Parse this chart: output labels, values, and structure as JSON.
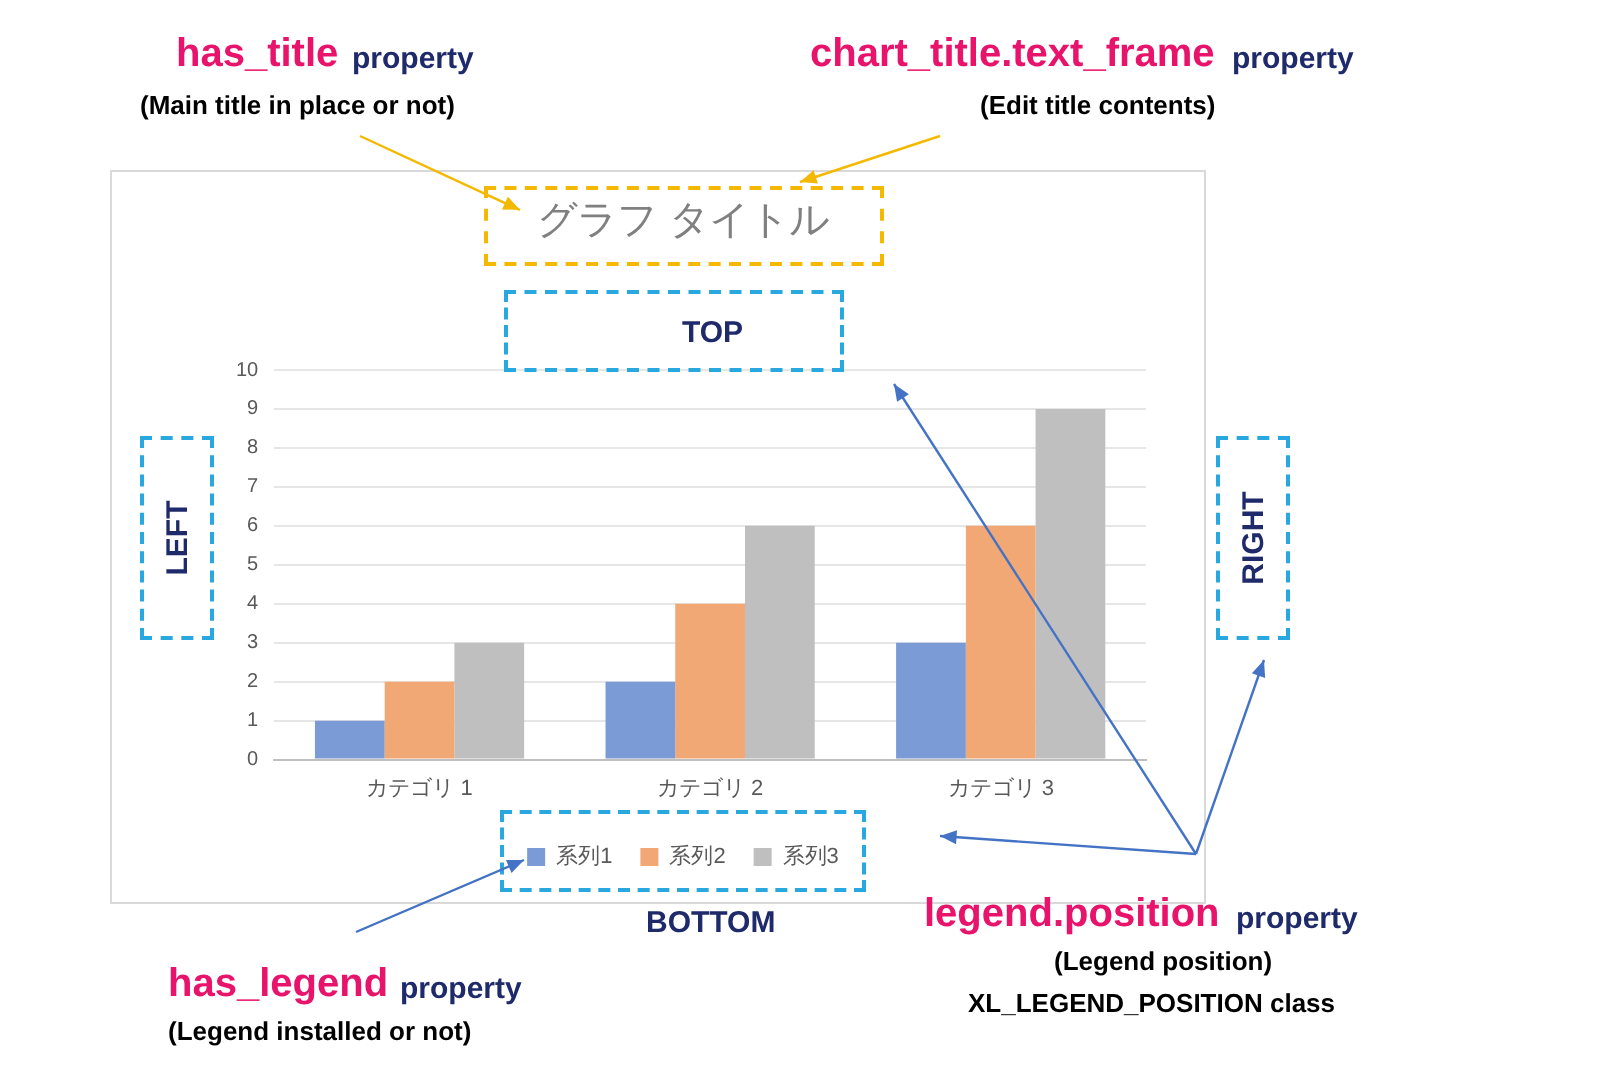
{
  "chart_data": {
    "type": "bar",
    "title": "グラフ タイトル",
    "categories": [
      "カテゴリ 1",
      "カテゴリ 2",
      "カテゴリ 3"
    ],
    "series": [
      {
        "name": "系列1",
        "color": "#7b9bd6",
        "values": [
          1,
          2,
          3
        ]
      },
      {
        "name": "系列2",
        "color": "#f2a874",
        "values": [
          2,
          4,
          6
        ]
      },
      {
        "name": "系列3",
        "color": "#bfbfbf",
        "values": [
          3,
          6,
          9
        ]
      }
    ],
    "ylim": [
      0,
      10
    ],
    "yticks": [
      0,
      1,
      2,
      3,
      4,
      5,
      6,
      7,
      8,
      9,
      10
    ],
    "grid": "y",
    "legend": "bottom",
    "annotations": [
      "has_title",
      "property",
      "(Main title in place or not)",
      "chart_title.text_frame",
      "property",
      "(Edit title contents)",
      "TOP",
      "LEFT",
      "RIGHT",
      "BOTTOM",
      "legend.position",
      "property",
      "(Legend position)",
      "XL_LEGEND_POSITION class",
      "has_legend",
      "property",
      "(Legend installed or not)"
    ]
  }
}
